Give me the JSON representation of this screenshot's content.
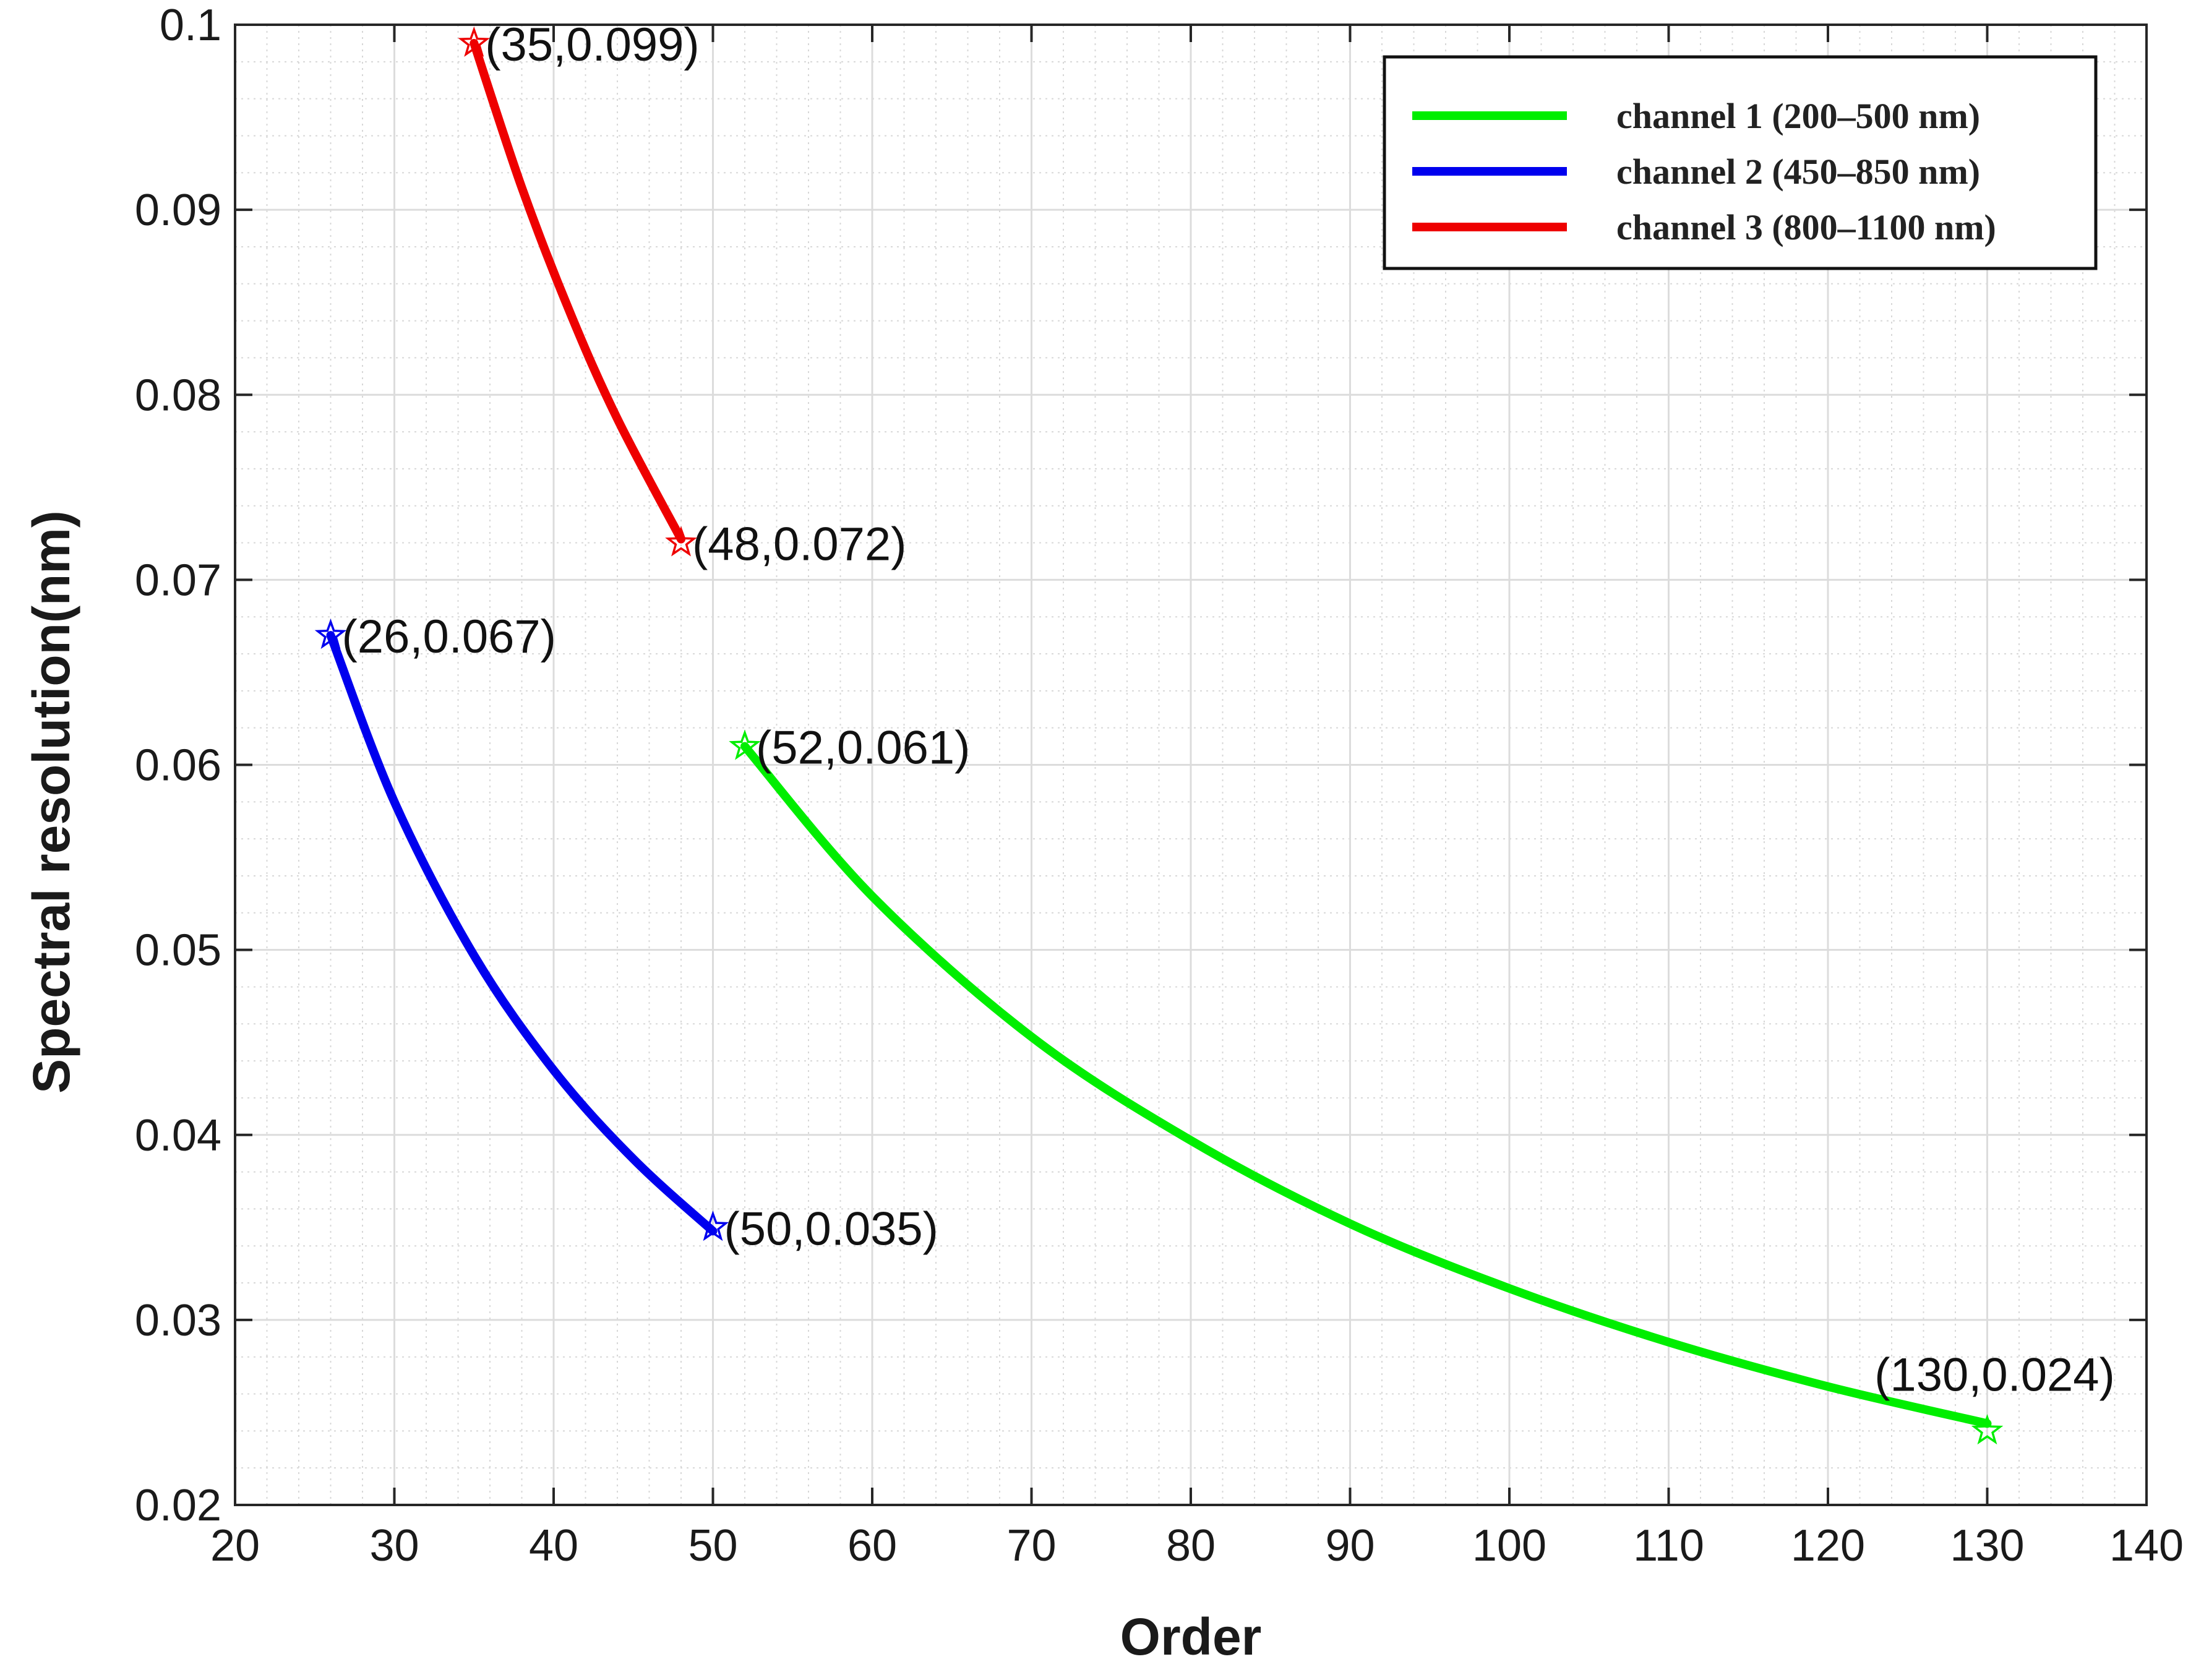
{
  "chart_data": {
    "type": "line",
    "title": "",
    "xlabel": "Order",
    "ylabel": "Spectral resolution(nm)",
    "xlim": [
      20,
      140
    ],
    "ylim": [
      0.02,
      0.1
    ],
    "xticks": [
      "20",
      "30",
      "40",
      "50",
      "60",
      "70",
      "80",
      "90",
      "100",
      "110",
      "120",
      "130",
      "140"
    ],
    "yticks": [
      "0.02",
      "0.03",
      "0.04",
      "0.05",
      "0.06",
      "0.07",
      "0.08",
      "0.09",
      "0.1"
    ],
    "xtick_values": [
      20,
      30,
      40,
      50,
      60,
      70,
      80,
      90,
      100,
      110,
      120,
      130,
      140
    ],
    "ytick_values": [
      0.02,
      0.03,
      0.04,
      0.05,
      0.06,
      0.07,
      0.08,
      0.09,
      0.1
    ],
    "grid": true,
    "minor_grid": true,
    "legend_position": "top-right",
    "series": [
      {
        "name": "channel 1 (200–500 nm)",
        "color": "#00ee00",
        "x": [
          52,
          60,
          70,
          80,
          90,
          100,
          110,
          120,
          130
        ],
        "y": [
          0.061,
          0.0529,
          0.0453,
          0.0397,
          0.0352,
          0.0317,
          0.0288,
          0.0264,
          0.0244
        ],
        "endpoints": [
          {
            "x": 52,
            "y": 0.061,
            "label": "(52,0.061)"
          },
          {
            "x": 130,
            "y": 0.024,
            "label": "(130,0.024)"
          }
        ]
      },
      {
        "name": "channel 2 (450–850 nm)",
        "color": "#0000ee",
        "x": [
          26,
          30,
          35,
          40,
          45,
          50
        ],
        "y": [
          0.067,
          0.058,
          0.0497,
          0.0435,
          0.0387,
          0.0348
        ],
        "endpoints": [
          {
            "x": 26,
            "y": 0.067,
            "label": "(26,0.067)"
          },
          {
            "x": 50,
            "y": 0.035,
            "label": "(50,0.035)"
          }
        ]
      },
      {
        "name": "channel 3 (800–1100 nm)",
        "color": "#ee0000",
        "x": [
          35,
          38,
          41,
          44,
          48
        ],
        "y": [
          0.099,
          0.0912,
          0.0845,
          0.0787,
          0.0722
        ],
        "endpoints": [
          {
            "x": 35,
            "y": 0.099,
            "label": "(35,0.099)"
          },
          {
            "x": 48,
            "y": 0.072,
            "label": "(48,0.072)"
          }
        ]
      }
    ]
  }
}
